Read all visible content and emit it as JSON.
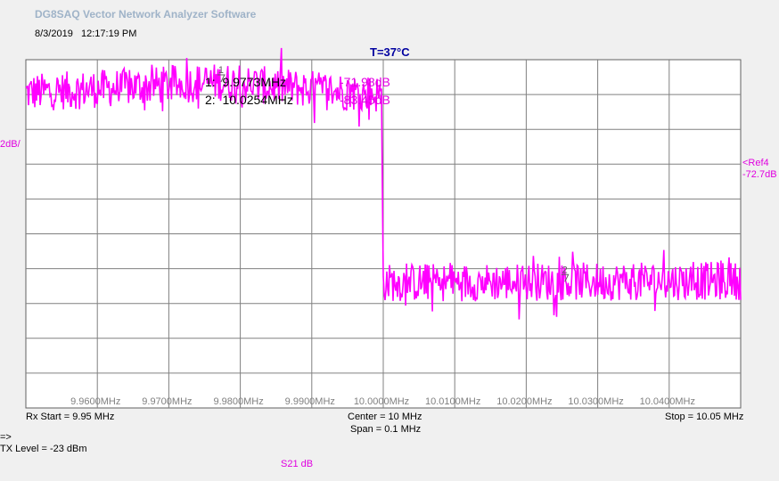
{
  "header": {
    "title": "DG8SAQ Vector Network Analyzer Software",
    "date": "8/3/2019",
    "time": "12:17:19 PM",
    "temperature": "T=37°C"
  },
  "markers": [
    {
      "id": "1:",
      "freq": "9.9773MHz",
      "value": "-71.98dB",
      "tag": "1"
    },
    {
      "id": "2:",
      "freq": "10.0254MHz",
      "value": "-83.45dB",
      "tag": "2"
    }
  ],
  "scale_label": "2dB/",
  "ref_label": "<Ref4",
  "ref_value": "-72.7dB",
  "footer": {
    "rx_start": "Rx Start = 9.95 MHz",
    "center": "Center = 10 MHz",
    "span": "Span = 0.1 MHz",
    "stop": "Stop = 10.05 MHz",
    "arrow": "=>",
    "tx_level": "TX Level = -23 dBm",
    "trace_label": "S21  dB"
  },
  "colors": {
    "trace": "#ff00ff",
    "grid": "#808080",
    "temp": "#0000a0"
  },
  "chart_data": {
    "type": "line",
    "title": "",
    "xlabel": "",
    "ylabel": "S21 dB",
    "xlim": [
      9.95,
      10.05
    ],
    "ylim": [
      -90.7,
      -70.7
    ],
    "x_ticks": [
      "9.9600MHz",
      "9.9700MHz",
      "9.9800MHz",
      "9.9900MHz",
      "10.0000MHz",
      "10.0100MHz",
      "10.0200MHz",
      "10.0300MHz",
      "10.0400MHz"
    ],
    "grid": true,
    "series": [
      {
        "name": "S21",
        "x": [
          9.95,
          9.9773,
          9.99975,
          10.0,
          10.0254,
          10.05
        ],
        "y": [
          -72.6,
          -71.98,
          -72.7,
          -83.5,
          -83.45,
          -83.4
        ]
      }
    ]
  }
}
